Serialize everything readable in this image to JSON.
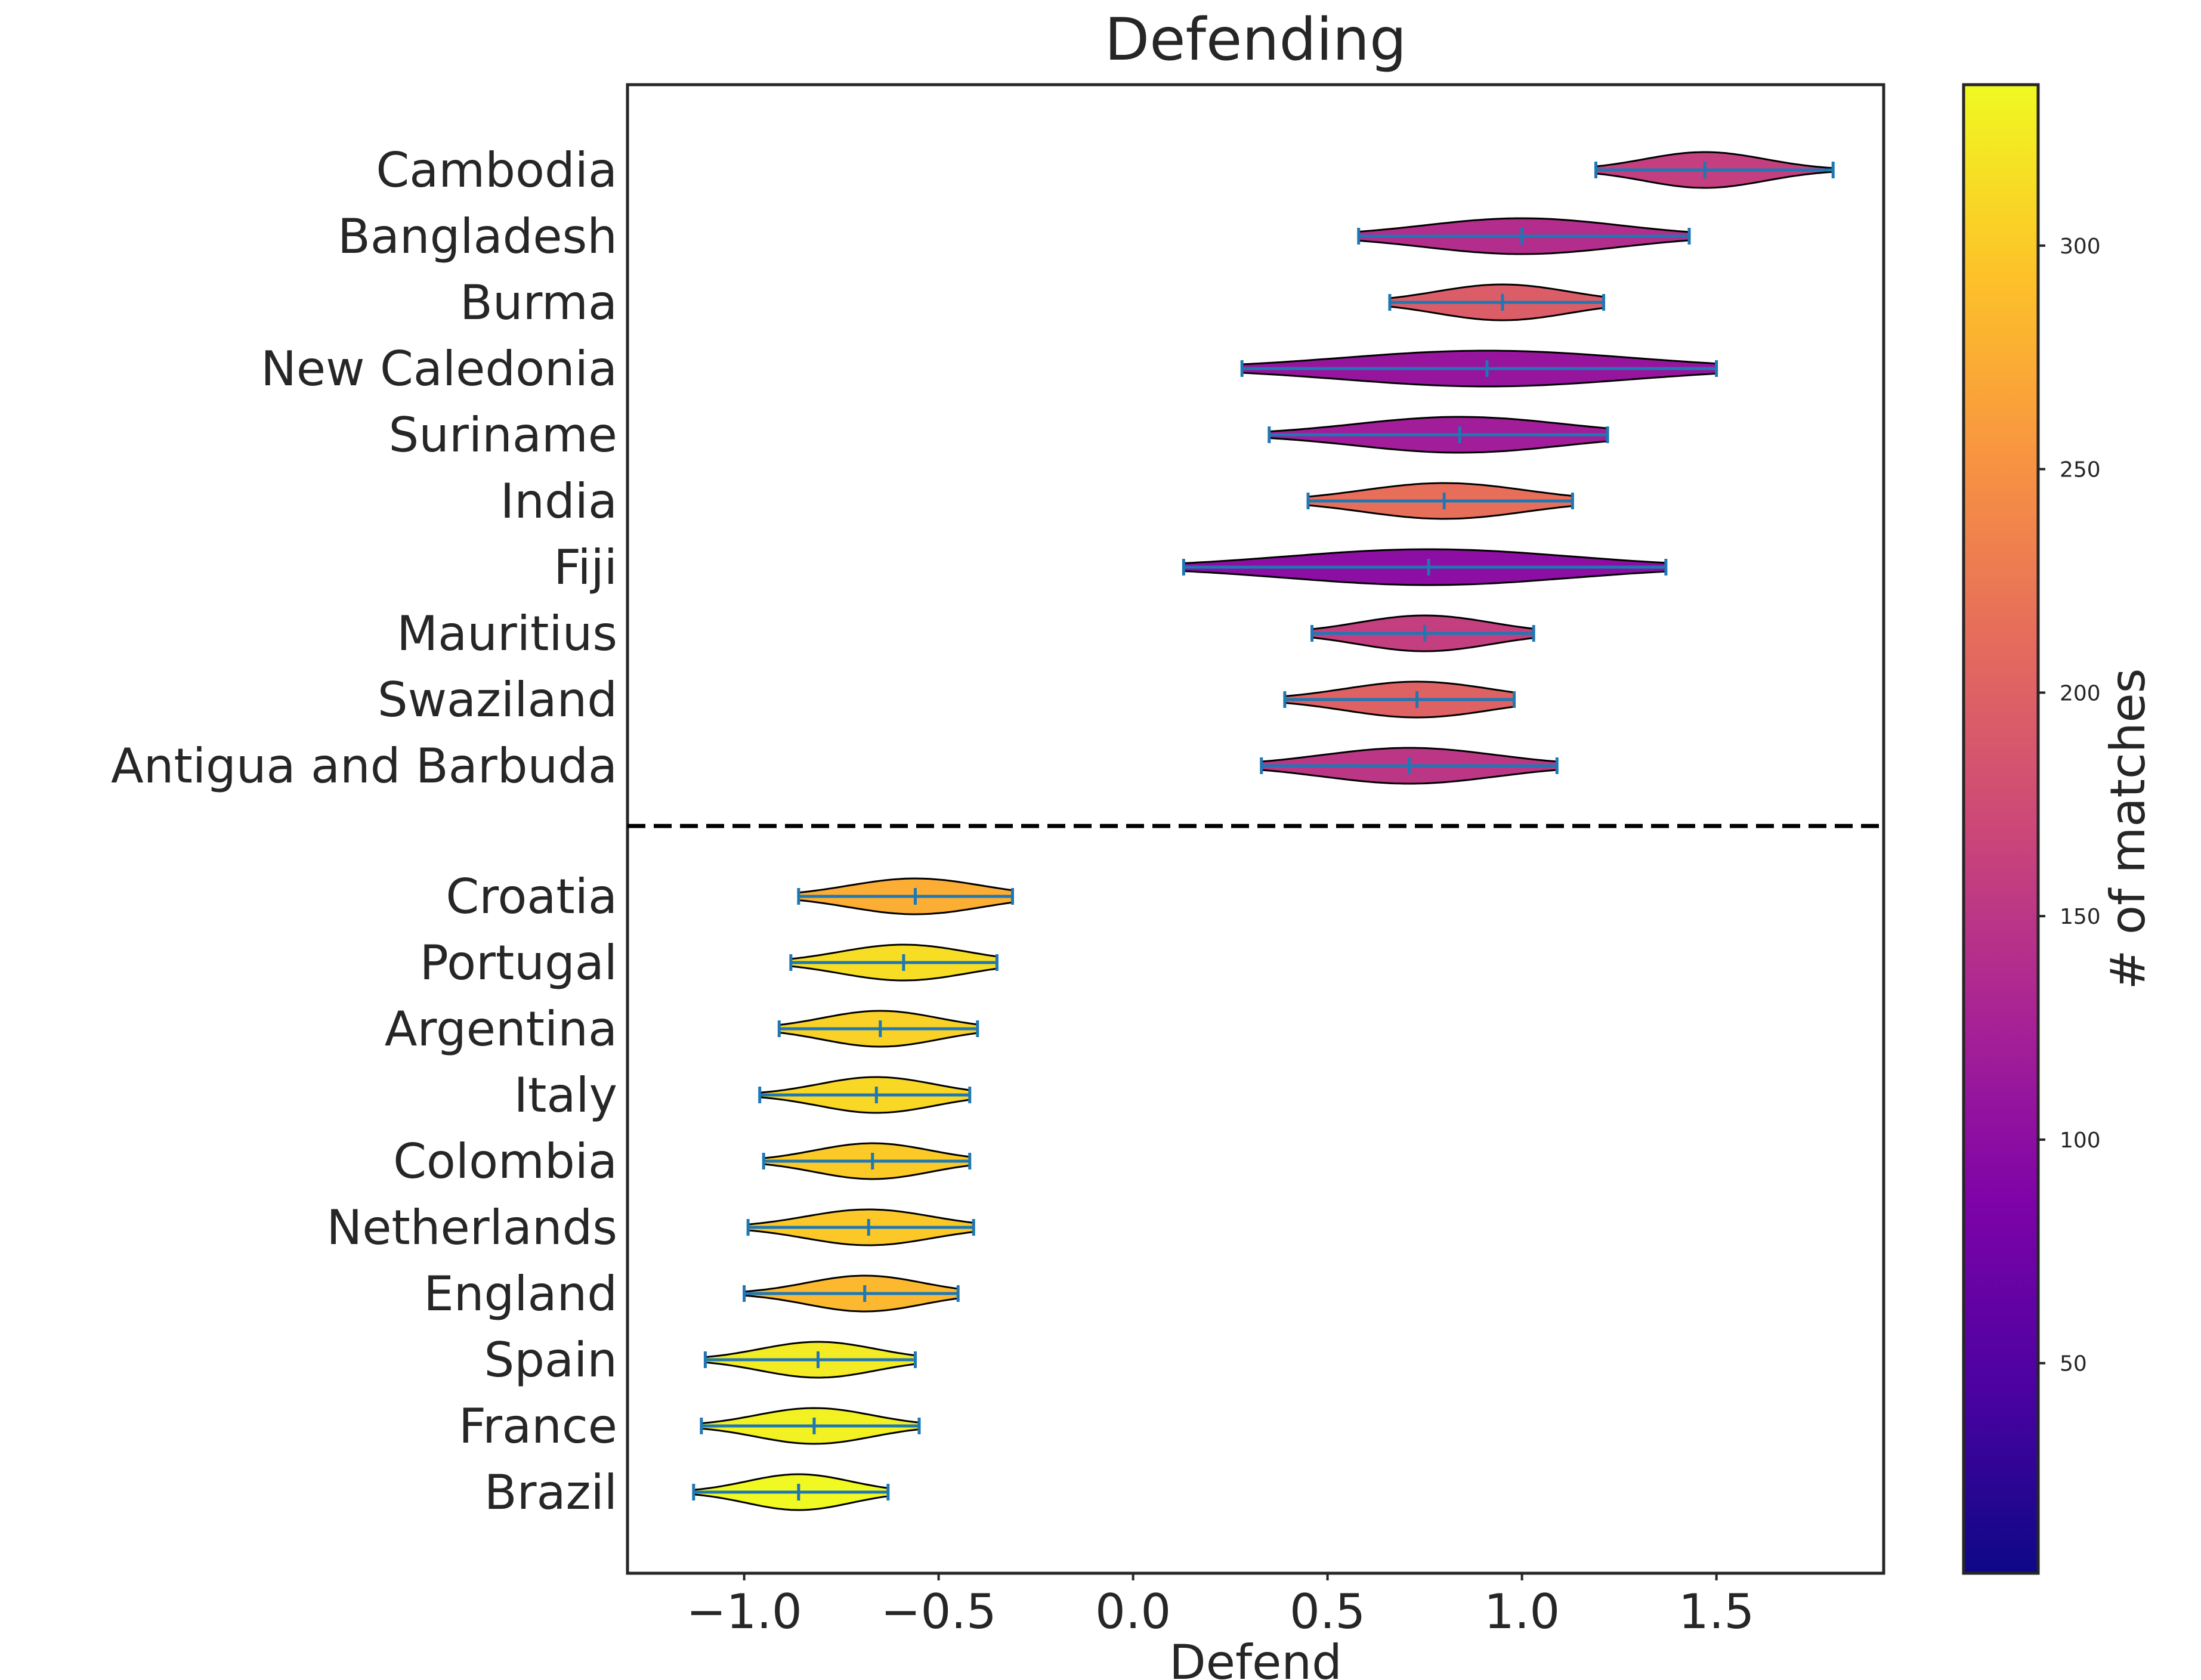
{
  "chart_data": {
    "type": "violin",
    "title": "Defending",
    "xlabel": "Defend",
    "ylabel": "",
    "xlim": [
      -1.3,
      1.93
    ],
    "x_ticks": [
      -1.0,
      -0.5,
      0.0,
      0.5,
      1.0,
      1.5
    ],
    "x_tick_labels": [
      "−1.0",
      "−0.5",
      "0.0",
      "0.5",
      "1.0",
      "1.5"
    ],
    "grid": false,
    "colorbar": {
      "label": "# of matches",
      "colormap": "plasma",
      "range": [
        3,
        336
      ],
      "ticks": [
        50,
        100,
        150,
        200,
        250,
        300
      ],
      "tick_labels": [
        "50",
        "100",
        "150",
        "200",
        "250",
        "300"
      ]
    },
    "separator": "dashed line between the two groups",
    "violin_edge_color": "#000000",
    "whisker_color": "#1f77b4",
    "groups": [
      {
        "name": "top",
        "items": [
          {
            "label": "Cambodia",
            "median": 1.47,
            "min": 1.19,
            "max": 1.8,
            "q1": 1.37,
            "q3": 1.58,
            "matches": 160
          },
          {
            "label": "Bangladesh",
            "median": 1.0,
            "min": 0.58,
            "max": 1.43,
            "q1": 0.83,
            "q3": 1.17,
            "matches": 140
          },
          {
            "label": "Burma",
            "median": 0.95,
            "min": 0.66,
            "max": 1.21,
            "q1": 0.84,
            "q3": 1.07,
            "matches": 195
          },
          {
            "label": "New Caledonia",
            "median": 0.91,
            "min": 0.28,
            "max": 1.5,
            "q1": 0.66,
            "q3": 1.16,
            "matches": 110
          },
          {
            "label": "Suriname",
            "median": 0.84,
            "min": 0.35,
            "max": 1.22,
            "q1": 0.66,
            "q3": 1.02,
            "matches": 120
          },
          {
            "label": "India",
            "median": 0.8,
            "min": 0.45,
            "max": 1.13,
            "q1": 0.66,
            "q3": 0.94,
            "matches": 215
          },
          {
            "label": "Fiji",
            "median": 0.76,
            "min": 0.13,
            "max": 1.37,
            "q1": 0.52,
            "q3": 1.01,
            "matches": 100
          },
          {
            "label": "Mauritius",
            "median": 0.75,
            "min": 0.46,
            "max": 1.03,
            "q1": 0.63,
            "q3": 0.86,
            "matches": 160
          },
          {
            "label": "Swaziland",
            "median": 0.73,
            "min": 0.39,
            "max": 0.98,
            "q1": 0.6,
            "q3": 0.85,
            "matches": 200
          },
          {
            "label": "Antigua and Barbuda",
            "median": 0.71,
            "min": 0.33,
            "max": 1.09,
            "q1": 0.56,
            "q3": 0.86,
            "matches": 150
          }
        ]
      },
      {
        "name": "bottom",
        "items": [
          {
            "label": "Croatia",
            "median": -0.56,
            "min": -0.86,
            "max": -0.31,
            "q1": -0.68,
            "q3": -0.45,
            "matches": 275
          },
          {
            "label": "Portugal",
            "median": -0.59,
            "min": -0.88,
            "max": -0.35,
            "q1": -0.7,
            "q3": -0.48,
            "matches": 315
          },
          {
            "label": "Argentina",
            "median": -0.65,
            "min": -0.91,
            "max": -0.4,
            "q1": -0.75,
            "q3": -0.55,
            "matches": 305
          },
          {
            "label": "Italy",
            "median": -0.66,
            "min": -0.96,
            "max": -0.42,
            "q1": -0.76,
            "q3": -0.56,
            "matches": 310
          },
          {
            "label": "Colombia",
            "median": -0.67,
            "min": -0.95,
            "max": -0.42,
            "q1": -0.77,
            "q3": -0.57,
            "matches": 300
          },
          {
            "label": "Netherlands",
            "median": -0.68,
            "min": -0.99,
            "max": -0.41,
            "q1": -0.79,
            "q3": -0.57,
            "matches": 298
          },
          {
            "label": "England",
            "median": -0.69,
            "min": -1.0,
            "max": -0.45,
            "q1": -0.79,
            "q3": -0.59,
            "matches": 285
          },
          {
            "label": "Spain",
            "median": -0.81,
            "min": -1.1,
            "max": -0.56,
            "q1": -0.91,
            "q3": -0.71,
            "matches": 325
          },
          {
            "label": "France",
            "median": -0.82,
            "min": -1.11,
            "max": -0.55,
            "q1": -0.92,
            "q3": -0.72,
            "matches": 330
          },
          {
            "label": "Brazil",
            "median": -0.86,
            "min": -1.13,
            "max": -0.63,
            "q1": -0.95,
            "q3": -0.77,
            "matches": 336
          }
        ]
      }
    ]
  }
}
